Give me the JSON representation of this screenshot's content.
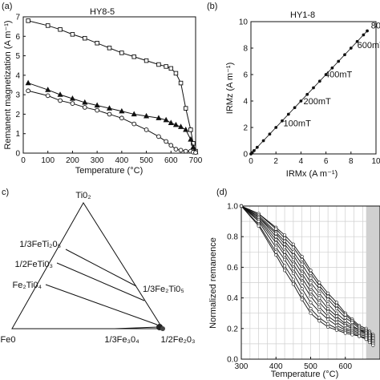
{
  "chart_data": [
    {
      "panel": "(a)",
      "type": "line",
      "title": "HY8-5",
      "xlabel": "Temperature (°C)",
      "ylabel": "Remanent magnetization (A m⁻¹)",
      "xlim": [
        0,
        700
      ],
      "ylim": [
        0,
        7
      ],
      "xticks": [
        0,
        100,
        200,
        300,
        400,
        500,
        600,
        700
      ],
      "yticks": [
        0,
        1,
        2,
        3,
        4,
        5,
        6,
        7
      ],
      "grid": false,
      "series": [
        {
          "marker": "square",
          "x": [
            20,
            100,
            150,
            200,
            250,
            300,
            350,
            400,
            450,
            500,
            550,
            580,
            600,
            620,
            640,
            660,
            680,
            690,
            700
          ],
          "y": [
            6.8,
            6.55,
            6.35,
            6.1,
            5.9,
            5.65,
            5.4,
            5.15,
            4.95,
            4.75,
            4.55,
            4.45,
            4.35,
            4.1,
            3.6,
            2.3,
            1.2,
            0.5,
            0.1
          ]
        },
        {
          "marker": "triangle",
          "x": [
            20,
            100,
            150,
            200,
            250,
            300,
            350,
            400,
            450,
            500,
            550,
            580,
            600,
            620,
            640,
            660,
            680,
            690,
            700
          ],
          "y": [
            3.6,
            3.25,
            3.0,
            2.8,
            2.6,
            2.45,
            2.3,
            2.15,
            2.0,
            1.9,
            1.8,
            1.7,
            1.55,
            1.45,
            1.35,
            1.2,
            0.7,
            0.3,
            0.05
          ]
        },
        {
          "marker": "circle",
          "x": [
            20,
            100,
            150,
            200,
            250,
            300,
            350,
            400,
            450,
            500,
            550,
            580,
            600,
            620,
            640,
            660,
            680,
            690,
            700
          ],
          "y": [
            3.2,
            2.95,
            2.7,
            2.55,
            2.35,
            2.2,
            2.0,
            1.8,
            1.5,
            1.2,
            0.85,
            0.6,
            0.4,
            0.2,
            0.15,
            0.1,
            0.1,
            0.05,
            0.03
          ]
        }
      ]
    },
    {
      "panel": "(b)",
      "type": "scatter",
      "title": "HY1-8",
      "xlabel": "IRMx (A m⁻¹)",
      "ylabel": "IRMz (A m⁻¹)",
      "xlim": [
        0,
        10
      ],
      "ylim": [
        0,
        10
      ],
      "xticks": [
        0,
        2,
        4,
        6,
        8,
        10
      ],
      "yticks": [
        0,
        2,
        4,
        6,
        8,
        10
      ],
      "grid": false,
      "x": [
        0,
        0.1,
        0.25,
        0.5,
        1.0,
        1.5,
        2.0,
        2.5,
        3.0,
        3.5,
        4.0,
        4.5,
        5.0,
        5.5,
        6.0,
        6.5,
        7.0,
        7.5,
        8.0,
        8.5,
        9.0,
        9.3
      ],
      "y": [
        0,
        0.1,
        0.25,
        0.5,
        1.0,
        1.5,
        2.0,
        2.5,
        3.0,
        3.5,
        4.0,
        4.5,
        5.0,
        5.5,
        6.0,
        6.5,
        7.0,
        7.5,
        8.0,
        8.5,
        9.0,
        9.3
      ],
      "annotations": [
        {
          "text": "100mT",
          "x": 2.6,
          "y": 2.1
        },
        {
          "text": "200mT",
          "x": 4.2,
          "y": 3.75
        },
        {
          "text": "400mT",
          "x": 5.9,
          "y": 5.8
        },
        {
          "text": "600mT",
          "x": 8.5,
          "y": 8.0
        },
        {
          "text": "800",
          "x": 9.6,
          "y": 9.5
        }
      ]
    },
    {
      "panel": "(c)",
      "type": "diagram",
      "vertices": {
        "top": "Ti0₂",
        "left": "Fe0",
        "right": "1/2Fe₂0₃"
      },
      "left_labels": [
        "1/3FeTi₂0₅",
        "1/2FeTi0₃",
        "Fe₂Ti0₄"
      ],
      "right_labels": [
        "1/3Fe₂Ti0₅"
      ],
      "bottom_labels": [
        "1/3Fe₃0₄"
      ]
    },
    {
      "panel": "(d)",
      "type": "line",
      "xlabel": "Temperature (°C)",
      "ylabel": "Normalized remanence",
      "xlim": [
        300,
        700
      ],
      "ylim": [
        0,
        1
      ],
      "xticks": [
        300,
        400,
        500,
        600
      ],
      "yticks": [
        0,
        0.2,
        0.4,
        0.6,
        0.8,
        1.0
      ],
      "grid": true,
      "shade_from": 660,
      "x": [
        300,
        350,
        400,
        425,
        450,
        475,
        500,
        525,
        550,
        575,
        600,
        620,
        640,
        660,
        670,
        680
      ],
      "series": [
        {
          "values": [
            1.0,
            0.95,
            0.86,
            0.81,
            0.75,
            0.67,
            0.58,
            0.5,
            0.43,
            0.37,
            0.3,
            0.26,
            0.22,
            0.2,
            0.18,
            0.16
          ]
        },
        {
          "values": [
            1.0,
            0.95,
            0.85,
            0.79,
            0.73,
            0.65,
            0.56,
            0.48,
            0.41,
            0.35,
            0.29,
            0.25,
            0.21,
            0.19,
            0.18,
            0.15
          ]
        },
        {
          "values": [
            1.0,
            0.94,
            0.83,
            0.77,
            0.7,
            0.62,
            0.53,
            0.46,
            0.39,
            0.33,
            0.27,
            0.24,
            0.2,
            0.18,
            0.17,
            0.14
          ]
        },
        {
          "values": [
            1.0,
            0.93,
            0.82,
            0.75,
            0.68,
            0.59,
            0.5,
            0.43,
            0.36,
            0.3,
            0.25,
            0.22,
            0.19,
            0.18,
            0.16,
            0.14
          ]
        },
        {
          "values": [
            1.0,
            0.93,
            0.8,
            0.73,
            0.65,
            0.56,
            0.47,
            0.4,
            0.33,
            0.28,
            0.23,
            0.21,
            0.19,
            0.17,
            0.16,
            0.13
          ]
        },
        {
          "values": [
            1.0,
            0.92,
            0.78,
            0.7,
            0.62,
            0.53,
            0.44,
            0.37,
            0.31,
            0.26,
            0.22,
            0.2,
            0.18,
            0.17,
            0.15,
            0.12
          ]
        },
        {
          "values": [
            1.0,
            0.91,
            0.76,
            0.68,
            0.59,
            0.5,
            0.41,
            0.34,
            0.28,
            0.24,
            0.2,
            0.19,
            0.17,
            0.16,
            0.14,
            0.12
          ]
        },
        {
          "values": [
            1.0,
            0.9,
            0.73,
            0.65,
            0.56,
            0.46,
            0.37,
            0.31,
            0.26,
            0.22,
            0.19,
            0.18,
            0.16,
            0.15,
            0.13,
            0.11
          ]
        },
        {
          "values": [
            1.0,
            0.88,
            0.7,
            0.61,
            0.52,
            0.42,
            0.33,
            0.27,
            0.23,
            0.2,
            0.18,
            0.17,
            0.15,
            0.14,
            0.12,
            0.1
          ]
        },
        {
          "values": [
            1.0,
            0.87,
            0.68,
            0.58,
            0.49,
            0.39,
            0.3,
            0.25,
            0.21,
            0.19,
            0.17,
            0.16,
            0.15,
            0.13,
            0.11,
            0.09
          ]
        }
      ]
    }
  ]
}
